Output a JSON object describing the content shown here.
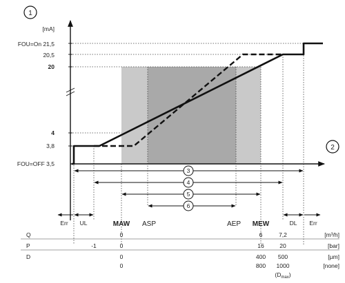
{
  "axis_y": {
    "marker": "1",
    "unit": "[mA]",
    "ticks": [
      "FOU=On  21,5",
      "20,5",
      "20",
      "4",
      "3,8",
      "FOU=OFF 3,5"
    ]
  },
  "axis_x": {
    "marker": "2"
  },
  "ranges": [
    "3",
    "4",
    "5",
    "6"
  ],
  "zone_labels": {
    "err_left": "Err",
    "ul": "UL",
    "maw": "MAW",
    "asp": "ASP",
    "aep": "AEP",
    "mew": "MEW",
    "dl": "DL",
    "err_right": "Err"
  },
  "table": {
    "rows": [
      {
        "name": "Q",
        "cells": [
          "0",
          "6",
          "7,2"
        ],
        "unit": "[m³/h]"
      },
      {
        "name": "P",
        "cells": [
          "-1",
          "0",
          "16",
          "20"
        ],
        "unit": "[bar]"
      },
      {
        "name": "D",
        "cells": [
          "0",
          "400",
          "500"
        ],
        "unit": "[µm]"
      },
      {
        "name": "",
        "cells": [
          "0",
          "800",
          "1000"
        ],
        "unit": "[none]"
      }
    ],
    "dmax": "(D",
    "dmax_sub": "max",
    "dmax_close": ")"
  },
  "colors": {
    "shade_light": "#c9c9c9",
    "shade_dark": "#a9a9a9",
    "line": "#111111"
  }
}
